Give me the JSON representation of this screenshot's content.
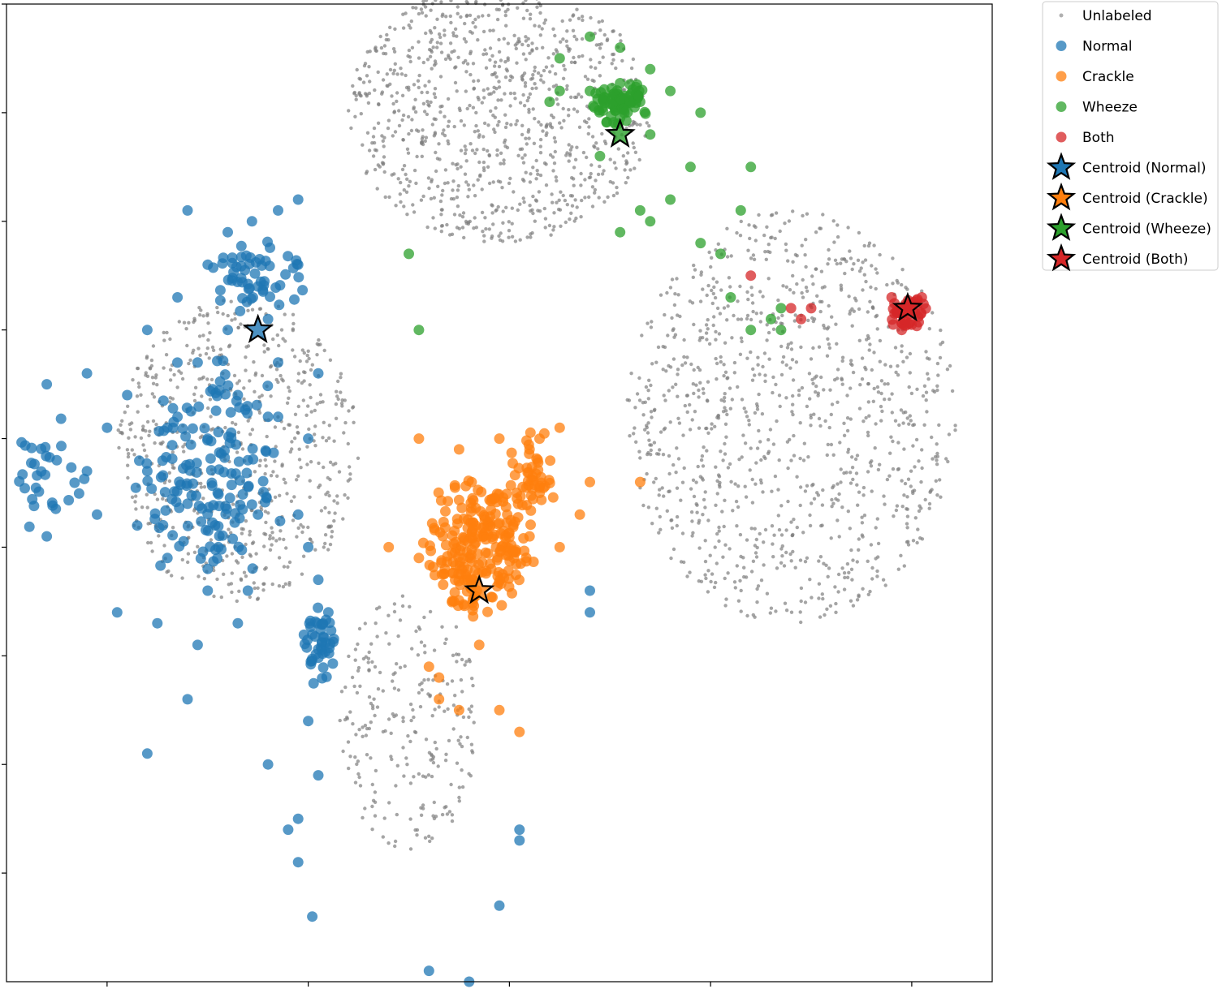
{
  "chart_data": {
    "type": "scatter",
    "title": "",
    "xlabel": "",
    "ylabel": "",
    "xlim": [
      -1.0,
      3.9
    ],
    "ylim": [
      -2.0,
      2.5
    ],
    "grid": false,
    "x_ticks": [
      -0.5,
      0.5,
      1.5,
      2.5,
      3.5
    ],
    "y_ticks": [
      -1.5,
      -1.0,
      -0.5,
      0.0,
      0.5,
      1.0,
      1.5,
      2.0,
      2.5
    ],
    "tick_labels_visible": false,
    "legend_position": "outside-top-right",
    "series": [
      {
        "name": "Unlabeled",
        "color": "#7f7f7f",
        "marker": "small-dot",
        "clusters": [
          {
            "center": [
              1.45,
              2.0
            ],
            "radius": [
              0.75,
              0.6
            ],
            "count": 950
          },
          {
            "center": [
              0.15,
              0.45
            ],
            "radius": [
              0.6,
              0.7
            ],
            "count": 650
          },
          {
            "center": [
              2.9,
              0.6
            ],
            "radius": [
              0.82,
              0.95
            ],
            "count": 1050
          },
          {
            "center": [
              1.0,
              -0.8
            ],
            "radius": [
              0.35,
              0.6
            ],
            "count": 250
          }
        ]
      },
      {
        "name": "Normal",
        "color": "#1f77b4",
        "marker": "circle",
        "points": [
          [
            0.22,
            1.5
          ],
          [
            0.35,
            1.55
          ],
          [
            0.45,
            1.6
          ],
          [
            0.1,
            1.45
          ],
          [
            -0.1,
            1.55
          ],
          [
            0.0,
            1.3
          ],
          [
            0.25,
            1.2
          ],
          [
            0.45,
            1.3
          ],
          [
            0.3,
            1.05
          ],
          [
            0.1,
            1.0
          ],
          [
            -0.15,
            1.15
          ],
          [
            -0.3,
            1.0
          ],
          [
            -0.05,
            0.85
          ],
          [
            0.15,
            0.7
          ],
          [
            0.35,
            0.85
          ],
          [
            0.55,
            0.8
          ],
          [
            -0.4,
            0.7
          ],
          [
            -0.6,
            0.8
          ],
          [
            -0.8,
            0.75
          ],
          [
            -0.5,
            0.55
          ],
          [
            -0.2,
            0.55
          ],
          [
            0.0,
            0.5
          ],
          [
            0.2,
            0.4
          ],
          [
            0.35,
            0.6
          ],
          [
            0.5,
            0.5
          ],
          [
            -0.3,
            0.35
          ],
          [
            -0.6,
            0.35
          ],
          [
            -0.75,
            0.4
          ],
          [
            -0.1,
            0.2
          ],
          [
            0.05,
            0.25
          ],
          [
            0.25,
            0.15
          ],
          [
            -0.35,
            0.1
          ],
          [
            -0.55,
            0.15
          ],
          [
            -0.8,
            0.05
          ],
          [
            0.5,
            0.0
          ],
          [
            0.45,
            0.15
          ],
          [
            0.55,
            -0.15
          ],
          [
            0.6,
            -0.3
          ],
          [
            -0.2,
            -0.05
          ],
          [
            0.0,
            -0.1
          ],
          [
            0.2,
            -0.2
          ],
          [
            -0.45,
            -0.3
          ],
          [
            -0.25,
            -0.35
          ],
          [
            -0.05,
            -0.45
          ],
          [
            0.15,
            -0.35
          ],
          [
            0.5,
            -0.8
          ],
          [
            0.55,
            -1.05
          ],
          [
            0.3,
            -1.0
          ],
          [
            -0.1,
            -0.7
          ],
          [
            -0.3,
            -0.95
          ],
          [
            0.4,
            -1.3
          ],
          [
            0.45,
            -1.45
          ],
          [
            0.45,
            -1.25
          ],
          [
            0.52,
            -1.7
          ],
          [
            1.1,
            -1.95
          ],
          [
            1.3,
            -2.0
          ],
          [
            1.45,
            -1.65
          ],
          [
            1.55,
            -1.3
          ],
          [
            1.55,
            -1.35
          ],
          [
            1.9,
            -0.2
          ],
          [
            1.9,
            -0.3
          ],
          [
            0.0,
            -0.2
          ],
          [
            -0.15,
            0.6
          ],
          [
            0.3,
            0.6
          ]
        ],
        "clusters": [
          {
            "center": [
              0.25,
              1.25
            ],
            "radius": [
              0.25,
              0.2
            ],
            "count": 55
          },
          {
            "center": [
              0.0,
              0.35
            ],
            "radius": [
              0.45,
              0.55
            ],
            "count": 150
          },
          {
            "center": [
              -0.8,
              0.35
            ],
            "radius": [
              0.2,
              0.3
            ],
            "count": 30
          },
          {
            "center": [
              0.55,
              -0.45
            ],
            "radius": [
              0.1,
              0.2
            ],
            "count": 45
          }
        ]
      },
      {
        "name": "Crackle",
        "color": "#ff7f0e",
        "marker": "circle",
        "points": [
          [
            1.05,
            0.5
          ],
          [
            1.25,
            0.45
          ],
          [
            1.45,
            0.5
          ],
          [
            1.6,
            0.45
          ],
          [
            1.75,
            0.55
          ],
          [
            1.9,
            0.3
          ],
          [
            2.15,
            0.3
          ],
          [
            0.9,
            0.0
          ],
          [
            1.05,
            -0.05
          ],
          [
            1.65,
            0.25
          ],
          [
            1.75,
            0.0
          ],
          [
            1.1,
            -0.55
          ],
          [
            1.15,
            -0.6
          ],
          [
            1.15,
            -0.7
          ],
          [
            1.25,
            -0.75
          ],
          [
            1.45,
            -0.75
          ],
          [
            1.55,
            -0.85
          ],
          [
            1.35,
            -0.45
          ],
          [
            1.6,
            0.05
          ],
          [
            1.85,
            0.15
          ]
        ],
        "clusters": [
          {
            "center": [
              1.35,
              0.0
            ],
            "radius": [
              0.3,
              0.35
            ],
            "count": 230
          },
          {
            "center": [
              1.6,
              0.35
            ],
            "radius": [
              0.15,
              0.25
            ],
            "count": 50
          }
        ]
      },
      {
        "name": "Wheeze",
        "color": "#2ca02c",
        "marker": "circle",
        "points": [
          [
            1.9,
            2.35
          ],
          [
            2.05,
            2.3
          ],
          [
            2.2,
            2.2
          ],
          [
            1.9,
            2.1
          ],
          [
            2.3,
            2.1
          ],
          [
            2.45,
            2.0
          ],
          [
            1.75,
            2.25
          ],
          [
            2.15,
            2.05
          ],
          [
            1.95,
            1.8
          ],
          [
            2.2,
            1.9
          ],
          [
            2.4,
            1.75
          ],
          [
            2.3,
            1.6
          ],
          [
            2.2,
            1.5
          ],
          [
            2.15,
            1.55
          ],
          [
            2.05,
            1.45
          ],
          [
            2.45,
            1.4
          ],
          [
            2.55,
            1.35
          ],
          [
            2.65,
            1.55
          ],
          [
            2.7,
            1.75
          ],
          [
            1.0,
            1.35
          ],
          [
            1.05,
            1.0
          ],
          [
            2.6,
            1.15
          ],
          [
            2.7,
            1.0
          ],
          [
            2.85,
            1.0
          ],
          [
            2.85,
            1.1
          ],
          [
            2.8,
            1.05
          ],
          [
            1.75,
            2.1
          ],
          [
            1.7,
            2.05
          ]
        ],
        "clusters": [
          {
            "center": [
              2.05,
              2.05
            ],
            "radius": [
              0.17,
              0.12
            ],
            "count": 80
          }
        ]
      },
      {
        "name": "Both",
        "color": "#d62728",
        "marker": "circle",
        "points": [
          [
            2.7,
            1.25
          ],
          [
            2.9,
            1.1
          ],
          [
            2.95,
            1.05
          ],
          [
            3.0,
            1.1
          ],
          [
            3.4,
            1.15
          ],
          [
            3.55,
            1.15
          ],
          [
            3.45,
            1.0
          ]
        ],
        "clusters": [
          {
            "center": [
              3.48,
              1.08
            ],
            "radius": [
              0.1,
              0.09
            ],
            "count": 45
          }
        ]
      },
      {
        "name": "Centroid (Normal)",
        "color": "#1f77b4",
        "marker": "star",
        "points": [
          [
            0.25,
            1.0
          ]
        ]
      },
      {
        "name": "Centroid (Crackle)",
        "color": "#ff7f0e",
        "marker": "star",
        "points": [
          [
            1.35,
            -0.2
          ]
        ]
      },
      {
        "name": "Centroid (Wheeze)",
        "color": "#2ca02c",
        "marker": "star",
        "points": [
          [
            2.05,
            1.9
          ]
        ]
      },
      {
        "name": "Centroid (Both)",
        "color": "#d62728",
        "marker": "star",
        "points": [
          [
            3.48,
            1.1
          ]
        ]
      }
    ],
    "legend": [
      {
        "label": "Unlabeled",
        "marker": "small-dot",
        "color": "#b0b0b0"
      },
      {
        "label": "Normal",
        "marker": "circle",
        "color": "#1f77b4"
      },
      {
        "label": "Crackle",
        "marker": "circle",
        "color": "#ff7f0e"
      },
      {
        "label": "Wheeze",
        "marker": "circle",
        "color": "#2ca02c"
      },
      {
        "label": "Both",
        "marker": "circle",
        "color": "#d62728"
      },
      {
        "label": "Centroid (Normal)",
        "marker": "star",
        "color": "#1f77b4"
      },
      {
        "label": "Centroid (Crackle)",
        "marker": "star",
        "color": "#ff7f0e"
      },
      {
        "label": "Centroid (Wheeze)",
        "marker": "star",
        "color": "#2ca02c"
      },
      {
        "label": "Centroid (Both)",
        "marker": "star",
        "color": "#d62728"
      }
    ]
  }
}
